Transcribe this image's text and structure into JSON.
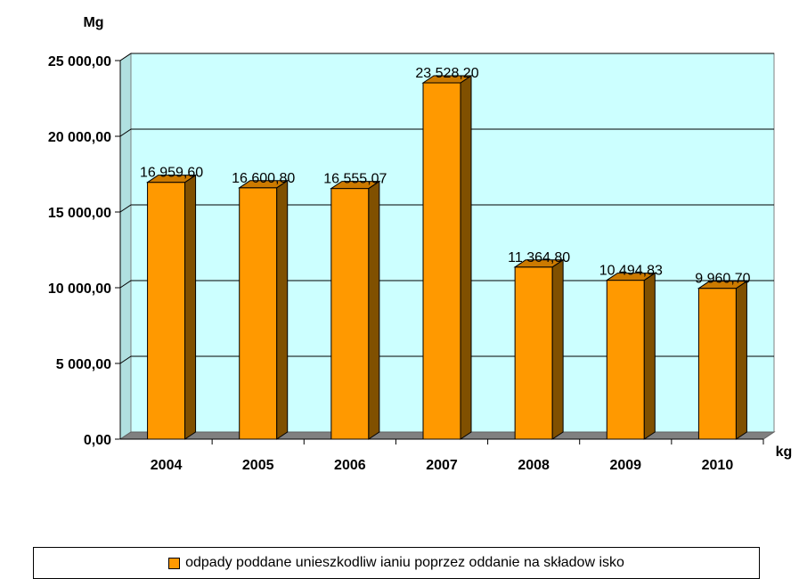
{
  "chart_data": {
    "type": "bar",
    "categories": [
      "2004",
      "2005",
      "2006",
      "2007",
      "2008",
      "2009",
      "2010"
    ],
    "series": [
      {
        "name": "odpady  poddane unieszkodliw ianiu poprzez oddanie na składow isko",
        "values": [
          16959.6,
          16600.8,
          16555.07,
          23528.2,
          11364.8,
          10494.83,
          9960.7
        ],
        "labels": [
          "16 959,60",
          "16 600,80",
          "16 555,07",
          "23 528,20",
          "11 364,80",
          "10 494,83",
          "9 960,70"
        ]
      }
    ],
    "ylim": [
      0,
      25000
    ],
    "yticks": [
      0,
      5000,
      10000,
      15000,
      20000,
      25000
    ],
    "ytick_labels": [
      "0,00",
      "5 000,00",
      "10 000,00",
      "15 000,00",
      "20 000,00",
      "25 000,00"
    ],
    "y_unit": "Mg",
    "x_unit": "kg",
    "grid": true,
    "legend_position": "bottom",
    "colors": {
      "plot_background": "#ccffff",
      "floor": "#808080",
      "bar_front": "#ff9900",
      "bar_side": "#805000",
      "bar_top": "#cc7a00",
      "gridline": "#000000"
    }
  }
}
